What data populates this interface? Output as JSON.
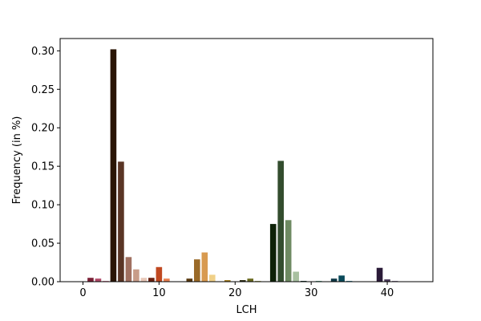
{
  "chart_data": {
    "type": "bar",
    "xlabel": "LCH",
    "ylabel": "Frequency (in %)",
    "xlim": [
      -3,
      46
    ],
    "ylim": [
      0,
      0.316
    ],
    "x_ticks": [
      0,
      10,
      20,
      30,
      40
    ],
    "y_ticks": [
      0.0,
      0.05,
      0.1,
      0.15,
      0.2,
      0.25,
      0.3
    ],
    "x_tick_labels": [
      "0",
      "10",
      "20",
      "30",
      "40"
    ],
    "y_tick_labels": [
      "0.00",
      "0.05",
      "0.10",
      "0.15",
      "0.20",
      "0.25",
      "0.30"
    ],
    "grid": false,
    "legend": "none",
    "bars": [
      {
        "x": 0,
        "value": 0.0,
        "color": "#3a1a1a"
      },
      {
        "x": 1,
        "value": 0.005,
        "color": "#7a1f35"
      },
      {
        "x": 2,
        "value": 0.004,
        "color": "#b04a68"
      },
      {
        "x": 3,
        "value": 0.001,
        "color": "#e08aa0"
      },
      {
        "x": 4,
        "value": 0.302,
        "color": "#2a1505"
      },
      {
        "x": 5,
        "value": 0.156,
        "color": "#5a3525"
      },
      {
        "x": 6,
        "value": 0.032,
        "color": "#a07060"
      },
      {
        "x": 7,
        "value": 0.016,
        "color": "#c89c88"
      },
      {
        "x": 8,
        "value": 0.005,
        "color": "#e8c8b8"
      },
      {
        "x": 9,
        "value": 0.005,
        "color": "#6a2010"
      },
      {
        "x": 10,
        "value": 0.019,
        "color": "#c04820"
      },
      {
        "x": 11,
        "value": 0.004,
        "color": "#e88050"
      },
      {
        "x": 12,
        "value": 0.0,
        "color": "#f0b890"
      },
      {
        "x": 13,
        "value": 0.0,
        "color": "#3a2a10"
      },
      {
        "x": 14,
        "value": 0.004,
        "color": "#5a3a10"
      },
      {
        "x": 15,
        "value": 0.029,
        "color": "#9a6a28"
      },
      {
        "x": 16,
        "value": 0.038,
        "color": "#d89a50"
      },
      {
        "x": 17,
        "value": 0.009,
        "color": "#f0d088"
      },
      {
        "x": 18,
        "value": 0.0,
        "color": "#4a3a10"
      },
      {
        "x": 19,
        "value": 0.002,
        "color": "#a07818"
      },
      {
        "x": 20,
        "value": 0.0,
        "color": "#e0c060"
      },
      {
        "x": 21,
        "value": 0.002,
        "color": "#2a2a10"
      },
      {
        "x": 22,
        "value": 0.004,
        "color": "#6a6a20"
      },
      {
        "x": 23,
        "value": 0.001,
        "color": "#b0b060"
      },
      {
        "x": 24,
        "value": 0.0,
        "color": "#1a2a10"
      },
      {
        "x": 25,
        "value": 0.075,
        "color": "#0e2208"
      },
      {
        "x": 26,
        "value": 0.157,
        "color": "#334d2e"
      },
      {
        "x": 27,
        "value": 0.08,
        "color": "#6e8a62"
      },
      {
        "x": 28,
        "value": 0.013,
        "color": "#a8c0a0"
      },
      {
        "x": 29,
        "value": 0.001,
        "color": "#0a2a20"
      },
      {
        "x": 30,
        "value": 0.0,
        "color": "#2a6a58"
      },
      {
        "x": 31,
        "value": 0.001,
        "color": "#60a890"
      },
      {
        "x": 32,
        "value": 0.0,
        "color": "#0a2a30"
      },
      {
        "x": 33,
        "value": 0.004,
        "color": "#103a48"
      },
      {
        "x": 34,
        "value": 0.008,
        "color": "#0a4a5a"
      },
      {
        "x": 35,
        "value": 0.001,
        "color": "#3a8aa0"
      },
      {
        "x": 36,
        "value": 0.0,
        "color": "#1a2a40"
      },
      {
        "x": 37,
        "value": 0.0,
        "color": "#3a5a80"
      },
      {
        "x": 38,
        "value": 0.0,
        "color": "#7a9ac0"
      },
      {
        "x": 39,
        "value": 0.018,
        "color": "#2a1a38"
      },
      {
        "x": 40,
        "value": 0.003,
        "color": "#4a3a58"
      },
      {
        "x": 41,
        "value": 0.001,
        "color": "#8a7a98"
      },
      {
        "x": 42,
        "value": 0.0,
        "color": "#3a1a30"
      },
      {
        "x": 43,
        "value": 0.0,
        "color": "#7a4a68"
      }
    ]
  }
}
